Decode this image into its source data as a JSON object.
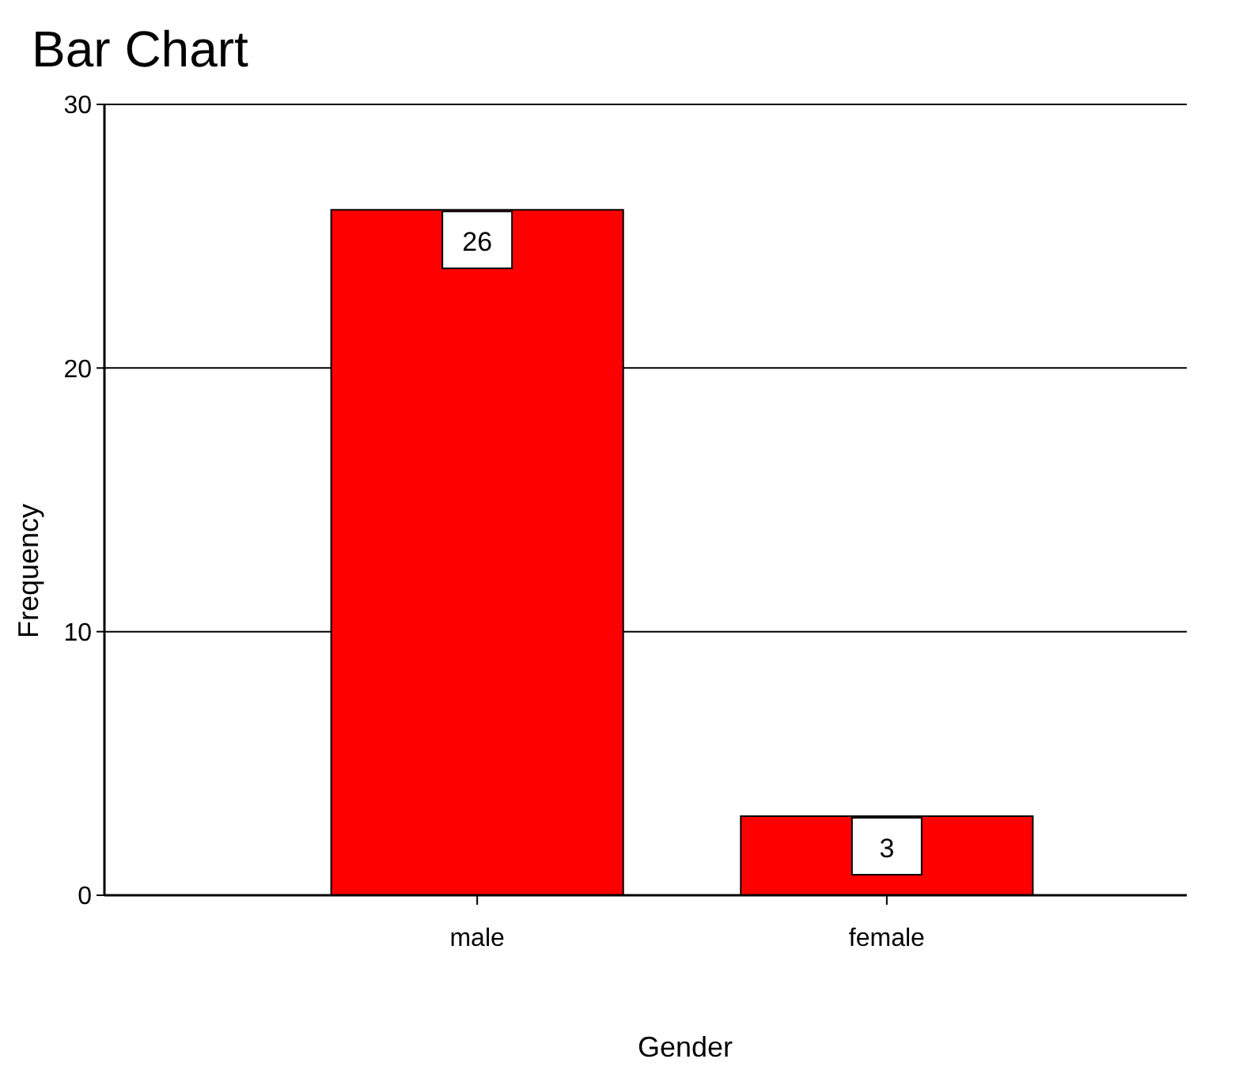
{
  "chart_data": {
    "type": "bar",
    "title": "Bar Chart",
    "xlabel": "Gender",
    "ylabel": "Frequency",
    "categories": [
      "male",
      "female"
    ],
    "values": [
      26,
      3
    ],
    "color": "#ff0000",
    "ylim": [
      0,
      30
    ],
    "yticks": [
      0,
      10,
      20,
      30
    ],
    "grid": "y",
    "data_labels": true
  }
}
